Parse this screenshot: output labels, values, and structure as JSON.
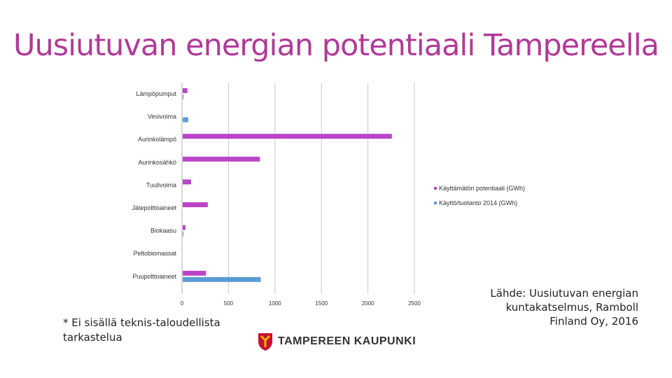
{
  "title": "Uusiutuvan energian potentiaali Tampereella",
  "chart_data": {
    "type": "bar",
    "orientation": "horizontal",
    "categories": [
      "Lämpöpumput",
      "Vesivoima",
      "Aurinkolämpö",
      "Aurinkosähkö",
      "Tuulivoima",
      "Jätepolttoaineet",
      "Biokaasu",
      "Peltobiomassat",
      "Puupolttoaineet"
    ],
    "series": [
      {
        "name": "Käyttämätön potentiaali (GWh)",
        "color": "#bb44c8",
        "values": [
          50,
          0,
          2250,
          830,
          90,
          270,
          30,
          0,
          250
        ]
      },
      {
        "name": "Käyttö/tuotanto 2014 (GWh)",
        "color": "#5b9bd5",
        "values": [
          8,
          60,
          0,
          0,
          0,
          0,
          8,
          0,
          840
        ]
      }
    ],
    "x_ticks": [
      "0",
      "500",
      "1000",
      "1500",
      "2000",
      "2500"
    ],
    "xlim": [
      0,
      2500
    ],
    "grid": true,
    "legend_position": "right"
  },
  "footnote": "* Ei sisällä teknis-taloudellista tarkastelua",
  "source": "Lähde: Uusiutuvan energian kuntakatselmus, Ramboll Finland Oy, 2016",
  "logo": {
    "text": "TAMPEREEN KAUPUNKI",
    "primary_color": "#c8102e",
    "secondary_color": "#f2b300"
  }
}
